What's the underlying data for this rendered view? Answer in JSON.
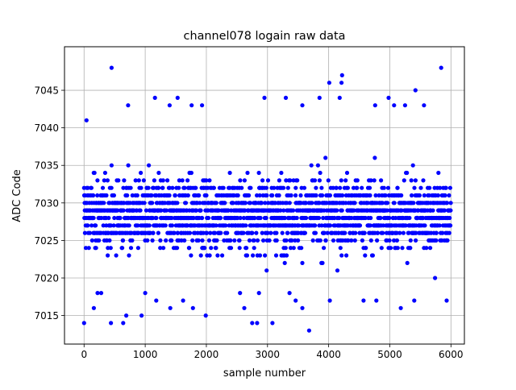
{
  "chart_data": {
    "type": "scatter",
    "title": "channel078 logain raw data",
    "xlabel": "sample number",
    "ylabel": "ADC Code",
    "xlim": [
      -320,
      6220
    ],
    "ylim": [
      7011.2,
      7050.8
    ],
    "x_ticks": [
      0,
      1000,
      2000,
      3000,
      4000,
      5000,
      6000
    ],
    "y_ticks": [
      7015,
      7020,
      7025,
      7030,
      7035,
      7040,
      7045
    ],
    "grid": true,
    "marker_color": "#0000ff",
    "n_samples": 6000,
    "dense_band": {
      "y_min": 7021,
      "y_max": 7036
    },
    "outliers": [
      {
        "x": 0,
        "y": 7014
      },
      {
        "x": 450,
        "y": 7048
      },
      {
        "x": 440,
        "y": 7014
      },
      {
        "x": 640,
        "y": 7014
      },
      {
        "x": 690,
        "y": 7015
      },
      {
        "x": 940,
        "y": 7015
      },
      {
        "x": 1990,
        "y": 7015
      },
      {
        "x": 2750,
        "y": 7014
      },
      {
        "x": 2830,
        "y": 7014
      },
      {
        "x": 3080,
        "y": 7014
      },
      {
        "x": 3680,
        "y": 7013
      },
      {
        "x": 5840,
        "y": 7048
      },
      {
        "x": 4220,
        "y": 7047
      },
      {
        "x": 4010,
        "y": 7046
      },
      {
        "x": 5420,
        "y": 7045
      },
      {
        "x": 4210,
        "y": 7046
      },
      {
        "x": 1160,
        "y": 7044
      },
      {
        "x": 1530,
        "y": 7044
      },
      {
        "x": 2950,
        "y": 7044
      },
      {
        "x": 3300,
        "y": 7044
      },
      {
        "x": 3850,
        "y": 7044
      },
      {
        "x": 4980,
        "y": 7044
      },
      {
        "x": 4180,
        "y": 7044
      },
      {
        "x": 720,
        "y": 7043
      },
      {
        "x": 1400,
        "y": 7043
      },
      {
        "x": 1760,
        "y": 7043
      },
      {
        "x": 1930,
        "y": 7043
      },
      {
        "x": 3570,
        "y": 7043
      },
      {
        "x": 4760,
        "y": 7043
      },
      {
        "x": 5070,
        "y": 7043
      },
      {
        "x": 5250,
        "y": 7043
      },
      {
        "x": 5560,
        "y": 7043
      },
      {
        "x": 40,
        "y": 7041
      },
      {
        "x": 160,
        "y": 7016
      },
      {
        "x": 1410,
        "y": 7016
      },
      {
        "x": 1780,
        "y": 7016
      },
      {
        "x": 2620,
        "y": 7016
      },
      {
        "x": 3570,
        "y": 7016
      },
      {
        "x": 5180,
        "y": 7016
      },
      {
        "x": 220,
        "y": 7018
      },
      {
        "x": 280,
        "y": 7018
      },
      {
        "x": 1000,
        "y": 7018
      },
      {
        "x": 1620,
        "y": 7017
      },
      {
        "x": 2550,
        "y": 7018
      },
      {
        "x": 2860,
        "y": 7018
      },
      {
        "x": 3360,
        "y": 7018
      },
      {
        "x": 4020,
        "y": 7017
      },
      {
        "x": 4570,
        "y": 7017
      },
      {
        "x": 4780,
        "y": 7017
      },
      {
        "x": 5400,
        "y": 7017
      },
      {
        "x": 5740,
        "y": 7020
      },
      {
        "x": 5930,
        "y": 7017
      },
      {
        "x": 1180,
        "y": 7017
      },
      {
        "x": 3460,
        "y": 7017
      }
    ]
  }
}
